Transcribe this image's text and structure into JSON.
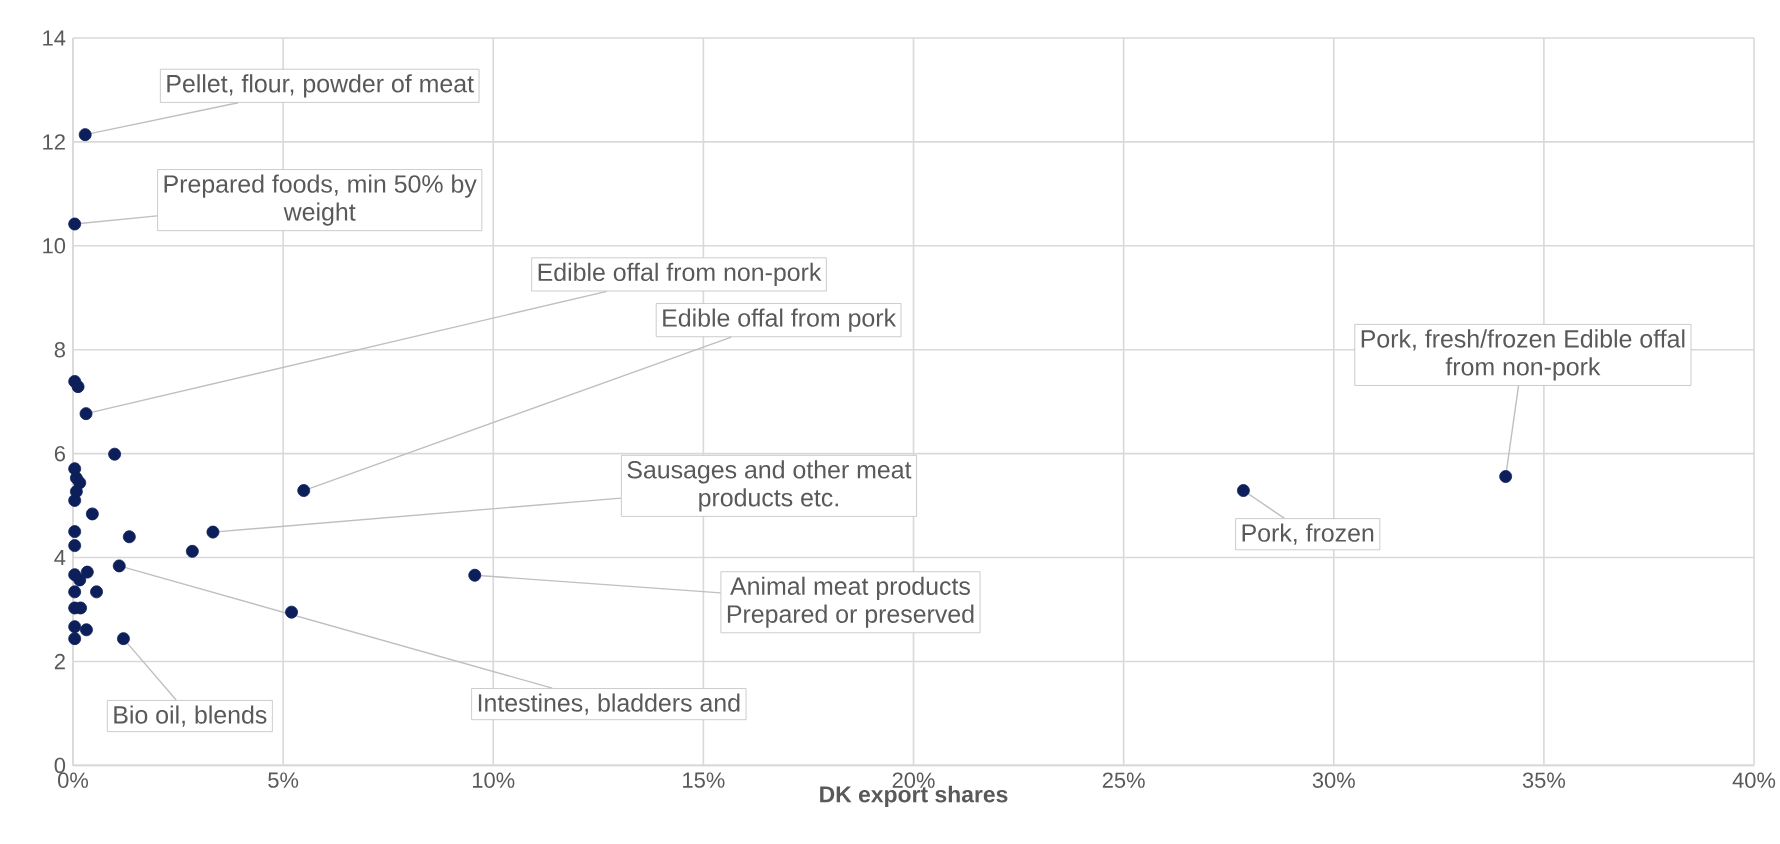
{
  "chart_data": {
    "type": "scatter",
    "xlabel": "DK export shares",
    "x": [
      0.29,
      0.04,
      0.04,
      0.12,
      0.31,
      0.99,
      0.04,
      0.08,
      0.16,
      0.08,
      0.04,
      0.46,
      0.04,
      0.04,
      1.34,
      2.84,
      3.33,
      5.49,
      1.1,
      0.34,
      0.04,
      0.16,
      0.56,
      0.04,
      0.04,
      0.18,
      0.04,
      0.32,
      0.04,
      1.2,
      5.2,
      9.56,
      27.85,
      34.09
    ],
    "values": [
      12.14,
      10.42,
      7.39,
      7.29,
      6.77,
      5.99,
      5.71,
      5.53,
      5.44,
      5.27,
      5.1,
      4.84,
      4.5,
      4.23,
      4.4,
      4.12,
      4.49,
      5.29,
      3.84,
      3.72,
      3.67,
      3.57,
      3.34,
      3.34,
      3.03,
      3.03,
      2.67,
      2.61,
      2.44,
      2.44,
      2.95,
      3.66,
      5.29,
      5.56
    ],
    "color": "#0c1f5a",
    "marker": "circle",
    "grid": true,
    "xlim": [
      0,
      40
    ],
    "ylim": [
      0,
      14
    ],
    "xticks": [
      {
        "value": 0,
        "label": "0%"
      },
      {
        "value": 5,
        "label": "5%"
      },
      {
        "value": 10,
        "label": "10%"
      },
      {
        "value": 15,
        "label": "15%"
      },
      {
        "value": 20,
        "label": "20%"
      },
      {
        "value": 25,
        "label": "25%"
      },
      {
        "value": 30,
        "label": "30%"
      },
      {
        "value": 35,
        "label": "35%"
      },
      {
        "value": 40,
        "label": "40%"
      }
    ],
    "yticks": [
      0,
      2,
      4,
      6,
      8,
      10,
      12,
      14
    ],
    "annotations": [
      {
        "text": "Pellet, flour, powder of meat",
        "x": 0.29,
        "y": 12.14
      },
      {
        "text": "Prepared foods, min 50% by weight",
        "x": 0.04,
        "y": 10.42
      },
      {
        "text": "Edible offal from non-pork",
        "x": 0.31,
        "y": 6.77
      },
      {
        "text": "Edible offal from pork",
        "x": 5.49,
        "y": 5.29
      },
      {
        "text": "Sausages and other meat products etc.",
        "x": 3.33,
        "y": 4.49
      },
      {
        "text": "Animal meat products Prepared or preserved",
        "x": 9.56,
        "y": 3.66
      },
      {
        "text": "Intestines, bladders and",
        "x": 1.1,
        "y": 3.84
      },
      {
        "text": "Bio oil, blends",
        "x": 1.2,
        "y": 2.44
      },
      {
        "text": "Pork, frozen",
        "x": 27.85,
        "y": 5.29
      },
      {
        "text": "Pork, fresh/frozen Edible offal from non-pork",
        "x": 34.09,
        "y": 5.56
      }
    ]
  }
}
